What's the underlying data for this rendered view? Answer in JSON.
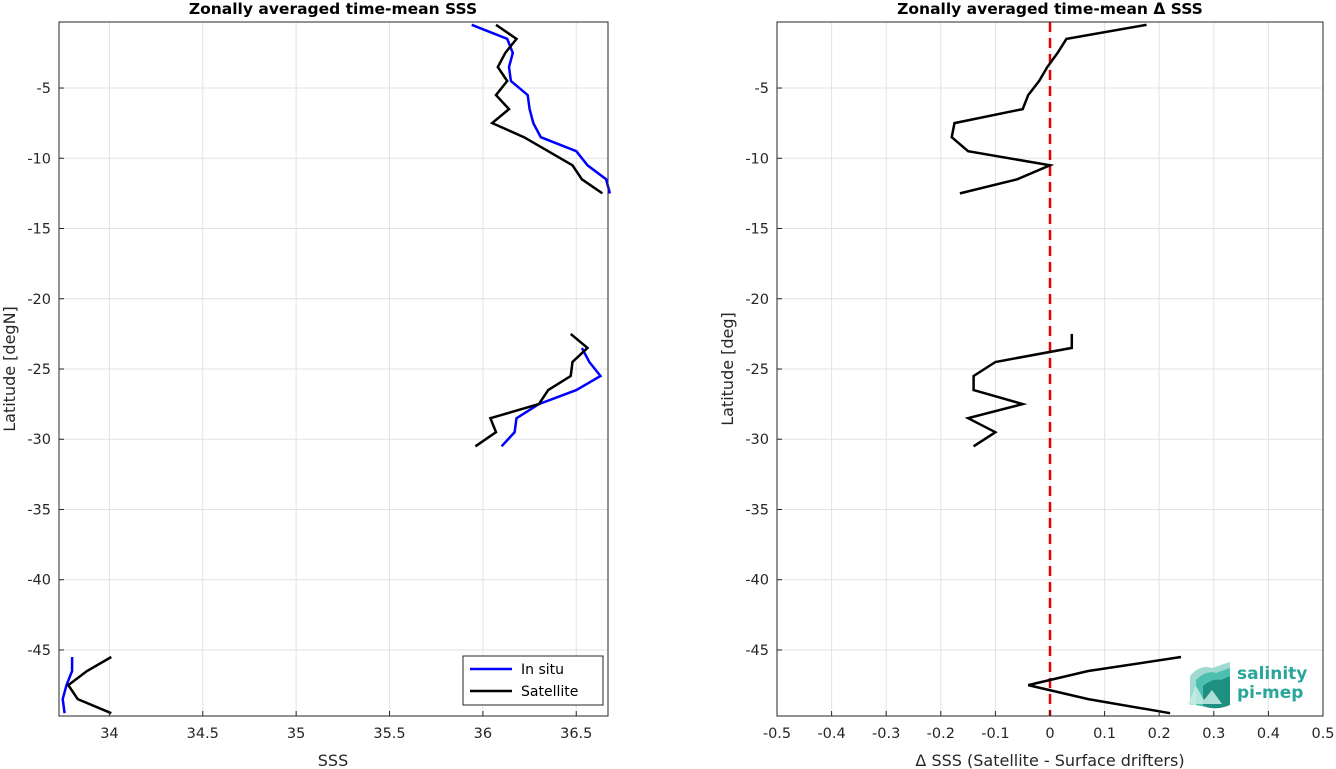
{
  "chart_data": [
    {
      "type": "line",
      "title": "Zonally averaged time-mean SSS",
      "xlabel": "SSS",
      "ylabel": "Latitude [degN]",
      "xlim": [
        33.73,
        36.67
      ],
      "ylim": [
        -49.7,
        -0.3
      ],
      "xticks": [
        34,
        34.5,
        35,
        35.5,
        36,
        36.5
      ],
      "xtick_labels": [
        "34",
        "34.5",
        "35",
        "35.5",
        "36",
        "36.5"
      ],
      "yticks": [
        -5,
        -10,
        -15,
        -20,
        -25,
        -30,
        -35,
        -40,
        -45
      ],
      "ytick_labels": [
        "-5",
        "-10",
        "-15",
        "-20",
        "-25",
        "-30",
        "-35",
        "-40",
        "-45"
      ],
      "grid": true,
      "legend_position": "bottom-right",
      "series": [
        {
          "name": "In situ",
          "color": "#0000ff",
          "segments": [
            [
              [
                35.94,
                -0.5
              ],
              [
                36.13,
                -1.5
              ],
              [
                36.16,
                -2.5
              ],
              [
                36.14,
                -3.5
              ],
              [
                36.15,
                -4.5
              ],
              [
                36.24,
                -5.5
              ],
              [
                36.25,
                -6.5
              ],
              [
                36.27,
                -7.5
              ],
              [
                36.31,
                -8.5
              ],
              [
                36.5,
                -9.5
              ],
              [
                36.56,
                -10.5
              ],
              [
                36.66,
                -11.5
              ],
              [
                36.68,
                -12.5
              ]
            ],
            [
              [
                36.53,
                -23.5
              ],
              [
                36.57,
                -24.5
              ],
              [
                36.63,
                -25.5
              ],
              [
                36.5,
                -26.5
              ],
              [
                36.3,
                -27.5
              ],
              [
                36.18,
                -28.5
              ],
              [
                36.17,
                -29.5
              ],
              [
                36.1,
                -30.5
              ]
            ],
            [
              [
                33.8,
                -45.5
              ],
              [
                33.8,
                -46.5
              ],
              [
                33.77,
                -47.5
              ],
              [
                33.75,
                -48.5
              ],
              [
                33.76,
                -49.5
              ]
            ]
          ]
        },
        {
          "name": "Satellite",
          "color": "#000000",
          "segments": [
            [
              [
                36.07,
                -0.5
              ],
              [
                36.18,
                -1.5
              ],
              [
                36.12,
                -2.5
              ],
              [
                36.08,
                -3.5
              ],
              [
                36.13,
                -4.5
              ],
              [
                36.07,
                -5.5
              ],
              [
                36.14,
                -6.5
              ],
              [
                36.05,
                -7.5
              ],
              [
                36.22,
                -8.5
              ],
              [
                36.35,
                -9.5
              ],
              [
                36.48,
                -10.5
              ],
              [
                36.53,
                -11.5
              ],
              [
                36.64,
                -12.5
              ]
            ],
            [
              [
                36.47,
                -22.5
              ],
              [
                36.56,
                -23.5
              ],
              [
                36.48,
                -24.5
              ],
              [
                36.47,
                -25.5
              ],
              [
                36.35,
                -26.5
              ],
              [
                36.3,
                -27.5
              ],
              [
                36.04,
                -28.5
              ],
              [
                36.07,
                -29.5
              ],
              [
                35.96,
                -30.5
              ]
            ],
            [
              [
                34.01,
                -45.5
              ],
              [
                33.88,
                -46.5
              ],
              [
                33.78,
                -47.5
              ],
              [
                33.83,
                -48.5
              ],
              [
                34.01,
                -49.5
              ]
            ]
          ]
        }
      ]
    },
    {
      "type": "line",
      "title": "Zonally averaged time-mean Δ SSS",
      "xlabel": "Δ SSS (Satellite - Surface drifters)",
      "ylabel": "Latitude [deg]",
      "xlim": [
        -0.5,
        0.5
      ],
      "ylim": [
        -49.7,
        -0.3
      ],
      "xticks": [
        -0.5,
        -0.4,
        -0.3,
        -0.2,
        -0.1,
        0,
        0.1,
        0.2,
        0.3,
        0.4,
        0.5
      ],
      "xtick_labels": [
        "-0.5",
        "-0.4",
        "-0.3",
        "-0.2",
        "-0.1",
        "0",
        "0.1",
        "0.2",
        "0.3",
        "0.4",
        "0.5"
      ],
      "yticks": [
        -5,
        -10,
        -15,
        -20,
        -25,
        -30,
        -35,
        -40,
        -45
      ],
      "ytick_labels": [
        "-5",
        "-10",
        "-15",
        "-20",
        "-25",
        "-30",
        "-35",
        "-40",
        "-45"
      ],
      "grid": true,
      "reference_line": {
        "x": 0,
        "color": "#e60000",
        "style": "dashed"
      },
      "series": [
        {
          "color": "#000000",
          "segments": [
            [
              [
                0.177,
                -0.5
              ],
              [
                0.03,
                -1.5
              ],
              [
                0.014,
                -2.5
              ],
              [
                -0.005,
                -3.5
              ],
              [
                -0.02,
                -4.5
              ],
              [
                -0.04,
                -5.5
              ],
              [
                -0.05,
                -6.5
              ],
              [
                -0.175,
                -7.5
              ],
              [
                -0.18,
                -8.5
              ],
              [
                -0.15,
                -9.5
              ],
              [
                0.0,
                -10.5
              ],
              [
                -0.06,
                -11.5
              ],
              [
                -0.165,
                -12.5
              ]
            ],
            [
              [
                0.04,
                -22.5
              ],
              [
                0.04,
                -23.5
              ],
              [
                -0.1,
                -24.5
              ],
              [
                -0.14,
                -25.5
              ],
              [
                -0.14,
                -26.5
              ],
              [
                -0.05,
                -27.5
              ],
              [
                -0.15,
                -28.5
              ],
              [
                -0.1,
                -29.5
              ],
              [
                -0.14,
                -30.5
              ]
            ],
            [
              [
                0.24,
                -45.5
              ],
              [
                0.07,
                -46.5
              ],
              [
                -0.04,
                -47.5
              ],
              [
                0.07,
                -48.5
              ],
              [
                0.22,
                -49.5
              ]
            ]
          ]
        }
      ]
    }
  ],
  "logo": {
    "line1": "salinity",
    "line2": "pi-mep"
  }
}
